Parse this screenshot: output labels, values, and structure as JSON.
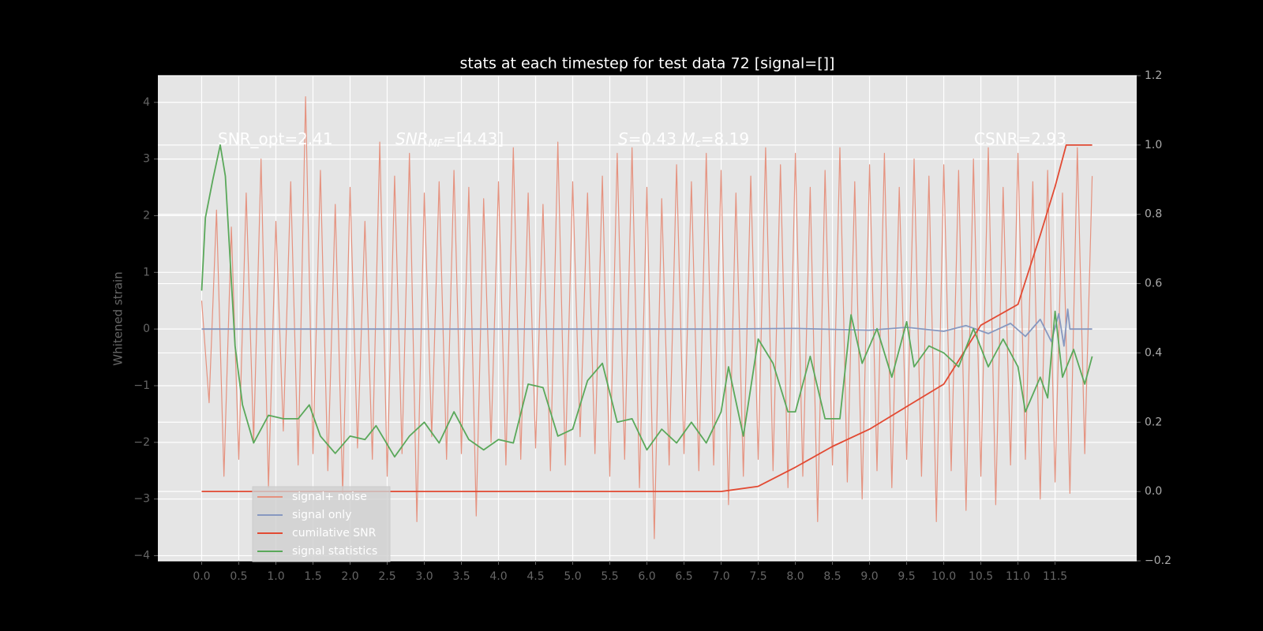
{
  "chart_data": {
    "type": "line",
    "title": "stats at each timestep for test data 72 [signal=[]]",
    "ylabel": "Whitened strain",
    "xlim": [
      -0.59,
      12.6
    ],
    "ylim": [
      -4.09,
      4.47
    ],
    "y2lim": [
      -0.2,
      1.2
    ],
    "xticks": [
      {
        "value": 0,
        "label": "0.0"
      },
      0.5,
      {
        "value": 1,
        "label": "1.0"
      },
      1.5,
      {
        "value": 2,
        "label": "2.0"
      },
      2.5,
      {
        "value": 3,
        "label": "3.0"
      },
      3.5,
      {
        "value": 4,
        "label": "4.0"
      },
      4.5,
      {
        "value": 5,
        "label": "5.0"
      },
      5.5,
      {
        "value": 6,
        "label": "6.0"
      },
      6.5,
      {
        "value": 7,
        "label": "7.0"
      },
      7.5,
      {
        "value": 8,
        "label": "8.0"
      },
      8.5,
      {
        "value": 9,
        "label": "9.0"
      },
      9.5,
      {
        "value": 10,
        "label": "10.0"
      },
      10.5,
      {
        "value": 11,
        "label": "11.0"
      },
      11.5
    ],
    "yticks": [
      {
        "value": -4,
        "label": "−4"
      },
      {
        "value": -3,
        "label": "−3"
      },
      {
        "value": -2,
        "label": "−2"
      },
      {
        "value": -1,
        "label": "−1"
      },
      0,
      1,
      2,
      3,
      4
    ],
    "y2ticks": [
      {
        "value": -0.2,
        "label": "−0.2"
      },
      {
        "value": 0,
        "label": "0.0"
      },
      0.2,
      0.4,
      0.6,
      0.8,
      {
        "value": 1,
        "label": "1.0"
      },
      1.2
    ],
    "grid": true,
    "legend_loc": "lower left",
    "annotations": [
      [
        {
          "text": "SNR_opt=2.41",
          "style": "normal"
        }
      ],
      [
        {
          "text": "SNR",
          "style": "italic"
        },
        {
          "text": "MF",
          "style": "sub"
        },
        {
          "text": "=[4.43]",
          "style": "normal"
        }
      ],
      [
        {
          "text": "S",
          "style": "italic"
        },
        {
          "text": "=0.43   ",
          "style": "normal"
        },
        {
          "text": "M",
          "style": "italic"
        },
        {
          "text": "c",
          "style": "sub"
        },
        {
          "text": "=8.19",
          "style": "normal"
        }
      ],
      [
        {
          "text": "CSNR=2.93",
          "style": "normal"
        }
      ]
    ],
    "series": [
      {
        "name": "signal+ noise",
        "color": "#e5927f",
        "axis": "y",
        "x": [
          0,
          0.1,
          0.2,
          0.3,
          0.4,
          0.5,
          0.6,
          0.7,
          0.8,
          0.9,
          1,
          1.1,
          1.2,
          1.3,
          1.4,
          1.5,
          1.6,
          1.7,
          1.8,
          1.9,
          2,
          2.1,
          2.2,
          2.3,
          2.4,
          2.5,
          2.6,
          2.7,
          2.8,
          2.9,
          3,
          3.1,
          3.2,
          3.3,
          3.4,
          3.5,
          3.6,
          3.7,
          3.8,
          3.9,
          4,
          4.1,
          4.2,
          4.3,
          4.4,
          4.5,
          4.6,
          4.7,
          4.8,
          4.9,
          5,
          5.1,
          5.2,
          5.3,
          5.4,
          5.5,
          5.6,
          5.7,
          5.8,
          5.9,
          6,
          6.1,
          6.2,
          6.3,
          6.4,
          6.5,
          6.6,
          6.7,
          6.8,
          6.9,
          7,
          7.1,
          7.2,
          7.3,
          7.4,
          7.5,
          7.6,
          7.7,
          7.8,
          7.9,
          8,
          8.1,
          8.2,
          8.3,
          8.4,
          8.5,
          8.6,
          8.7,
          8.8,
          8.9,
          9,
          9.1,
          9.2,
          9.3,
          9.4,
          9.5,
          9.6,
          9.7,
          9.8,
          9.9,
          10,
          10.1,
          10.2,
          10.3,
          10.4,
          10.5,
          10.6,
          10.7,
          10.8,
          10.9,
          11,
          11.1,
          11.2,
          11.3,
          11.4,
          11.5,
          11.6,
          11.7,
          11.8,
          11.9,
          12
        ],
        "values": [
          0.5,
          -1.3,
          2.1,
          -2.6,
          1.8,
          -2.3,
          2.4,
          -2.0,
          3.0,
          -2.8,
          1.9,
          -1.8,
          2.6,
          -2.4,
          4.1,
          -2.2,
          2.8,
          -2.5,
          2.2,
          -2.9,
          2.5,
          -2.1,
          1.9,
          -2.3,
          3.3,
          -2.6,
          2.7,
          -2.2,
          3.1,
          -3.4,
          2.4,
          -1.9,
          2.6,
          -2.3,
          2.8,
          -2.2,
          2.5,
          -3.3,
          2.3,
          -2.0,
          2.6,
          -2.4,
          3.2,
          -2.3,
          2.4,
          -2.1,
          2.2,
          -2.5,
          3.3,
          -2.4,
          2.6,
          -1.9,
          2.4,
          -2.2,
          2.7,
          -2.6,
          3.1,
          -2.3,
          3.2,
          -2.8,
          2.5,
          -3.7,
          2.3,
          -2.4,
          2.9,
          -2.2,
          2.6,
          -2.5,
          3.1,
          -2.4,
          2.8,
          -3.1,
          2.4,
          -2.6,
          2.7,
          -2.3,
          3.2,
          -2.5,
          2.9,
          -2.8,
          3.1,
          -2.6,
          2.5,
          -3.4,
          2.8,
          -2.4,
          3.2,
          -2.7,
          2.6,
          -3.0,
          2.9,
          -2.5,
          3.1,
          -2.8,
          2.5,
          -2.3,
          3.0,
          -2.6,
          2.7,
          -3.4,
          2.9,
          -2.5,
          2.8,
          -3.2,
          3.0,
          -2.6,
          3.2,
          -3.1,
          2.5,
          -2.4,
          3.1,
          -2.3,
          2.6,
          -3.0,
          2.8,
          -2.7,
          2.4,
          -2.9,
          3.2,
          -2.2,
          2.7
        ]
      },
      {
        "name": "signal only",
        "color": "#8798c0",
        "axis": "y",
        "x": [
          0,
          7,
          8,
          9,
          9.5,
          10,
          10.3,
          10.6,
          10.9,
          11.1,
          11.3,
          11.45,
          11.55,
          11.62,
          11.67,
          11.7,
          12
        ],
        "values": [
          0,
          0,
          0.01,
          -0.02,
          0.03,
          -0.04,
          0.06,
          -0.08,
          0.1,
          -0.13,
          0.17,
          -0.22,
          0.27,
          -0.3,
          0.35,
          0,
          0
        ]
      },
      {
        "name": "cumilative SNR",
        "color": "#e24a33",
        "axis": "y2",
        "x": [
          0,
          7,
          7.1,
          7.5,
          8,
          8.5,
          9,
          9.5,
          10,
          10.5,
          11,
          11.3,
          11.5,
          11.65,
          11.7,
          12
        ],
        "values": [
          0,
          0,
          0.003,
          0.015,
          0.07,
          0.13,
          0.18,
          0.245,
          0.31,
          0.48,
          0.54,
          0.74,
          0.88,
          1.0,
          1.0,
          1.0
        ]
      },
      {
        "name": "signal statistics",
        "color": "#5aa85a",
        "axis": "y2",
        "x": [
          0,
          0.05,
          0.15,
          0.25,
          0.32,
          0.45,
          0.55,
          0.7,
          0.9,
          1.1,
          1.3,
          1.45,
          1.6,
          1.8,
          2.0,
          2.2,
          2.35,
          2.6,
          2.8,
          3.0,
          3.2,
          3.4,
          3.6,
          3.8,
          4.0,
          4.2,
          4.4,
          4.6,
          4.8,
          5.0,
          5.2,
          5.4,
          5.6,
          5.8,
          6.0,
          6.2,
          6.4,
          6.6,
          6.8,
          7.0,
          7.1,
          7.3,
          7.5,
          7.7,
          7.9,
          8.0,
          8.2,
          8.4,
          8.6,
          8.75,
          8.9,
          9.1,
          9.3,
          9.5,
          9.6,
          9.8,
          10.0,
          10.2,
          10.4,
          10.6,
          10.8,
          11.0,
          11.1,
          11.3,
          11.4,
          11.5,
          11.6,
          11.75,
          11.9,
          12.0
        ],
        "values": [
          0.58,
          0.79,
          0.9,
          1.0,
          0.91,
          0.42,
          0.25,
          0.14,
          0.22,
          0.21,
          0.21,
          0.25,
          0.16,
          0.11,
          0.16,
          0.15,
          0.19,
          0.1,
          0.16,
          0.2,
          0.14,
          0.23,
          0.15,
          0.12,
          0.15,
          0.14,
          0.31,
          0.3,
          0.16,
          0.18,
          0.32,
          0.37,
          0.2,
          0.21,
          0.12,
          0.18,
          0.14,
          0.2,
          0.14,
          0.23,
          0.36,
          0.16,
          0.44,
          0.37,
          0.23,
          0.23,
          0.39,
          0.21,
          0.21,
          0.51,
          0.37,
          0.47,
          0.33,
          0.49,
          0.36,
          0.42,
          0.4,
          0.36,
          0.47,
          0.36,
          0.44,
          0.36,
          0.23,
          0.33,
          0.27,
          0.52,
          0.33,
          0.41,
          0.31,
          0.39
        ]
      }
    ]
  }
}
